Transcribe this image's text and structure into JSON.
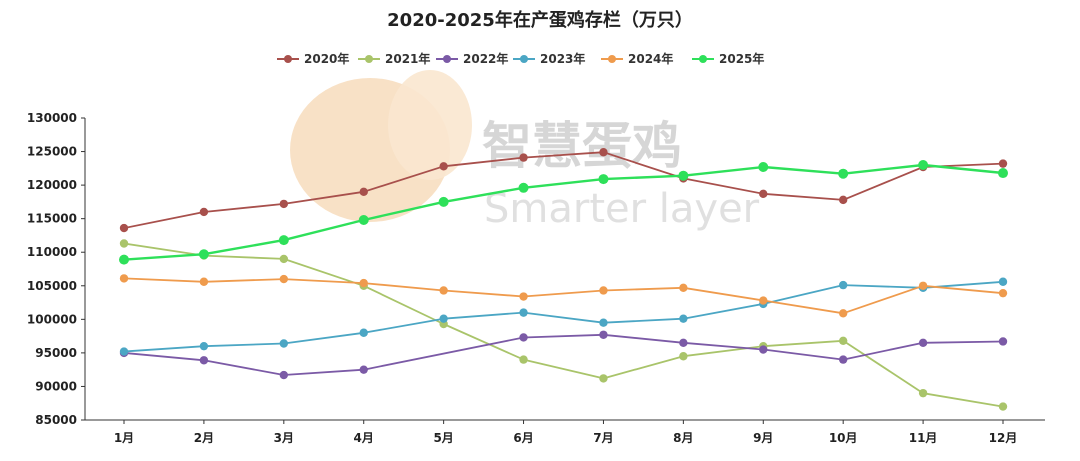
{
  "chart_data": {
    "type": "line",
    "title": "2020-2025年在产蛋鸡存栏（万只）",
    "categories": [
      "1月",
      "2月",
      "3月",
      "4月",
      "5月",
      "6月",
      "7月",
      "8月",
      "9月",
      "10月",
      "11月",
      "12月"
    ],
    "ylim": [
      85000,
      130000
    ],
    "yticks": [
      85000,
      90000,
      95000,
      100000,
      105000,
      110000,
      115000,
      120000,
      125000,
      130000
    ],
    "legend_position": "top-center",
    "grid": false,
    "series": [
      {
        "name": "2020年",
        "color": "#a8504c",
        "values": [
          113600,
          116000,
          117200,
          119000,
          122800,
          124100,
          124900,
          121000,
          118700,
          117800,
          122700,
          123200
        ]
      },
      {
        "name": "2021年",
        "color": "#a9c46a",
        "values": [
          111300,
          109500,
          109000,
          105000,
          99300,
          94000,
          91200,
          94500,
          96000,
          96800,
          89000,
          87000
        ]
      },
      {
        "name": "2022年",
        "color": "#7b5aa6",
        "values": [
          95000,
          93900,
          91700,
          92500,
          null,
          97300,
          97700,
          96500,
          95500,
          94000,
          96500,
          96700
        ]
      },
      {
        "name": "2023年",
        "color": "#4ba6c4",
        "values": [
          95200,
          96000,
          96400,
          98000,
          100100,
          101000,
          99500,
          100100,
          102300,
          105100,
          104700,
          105600
        ]
      },
      {
        "name": "2024年",
        "color": "#ef9b4d",
        "values": [
          106100,
          105600,
          106000,
          105400,
          104300,
          103400,
          104300,
          104700,
          102800,
          100900,
          105000,
          103900
        ]
      },
      {
        "name": "2025年",
        "color": "#2ee05a",
        "values": [
          108900,
          109700,
          111800,
          114800,
          117500,
          119600,
          120900,
          121400,
          122700,
          121700,
          123000,
          121800
        ]
      }
    ],
    "series_2022_5月_note": null
  },
  "watermark": {
    "brand": "智慧蛋鸡",
    "sub": "Smarter layer"
  }
}
